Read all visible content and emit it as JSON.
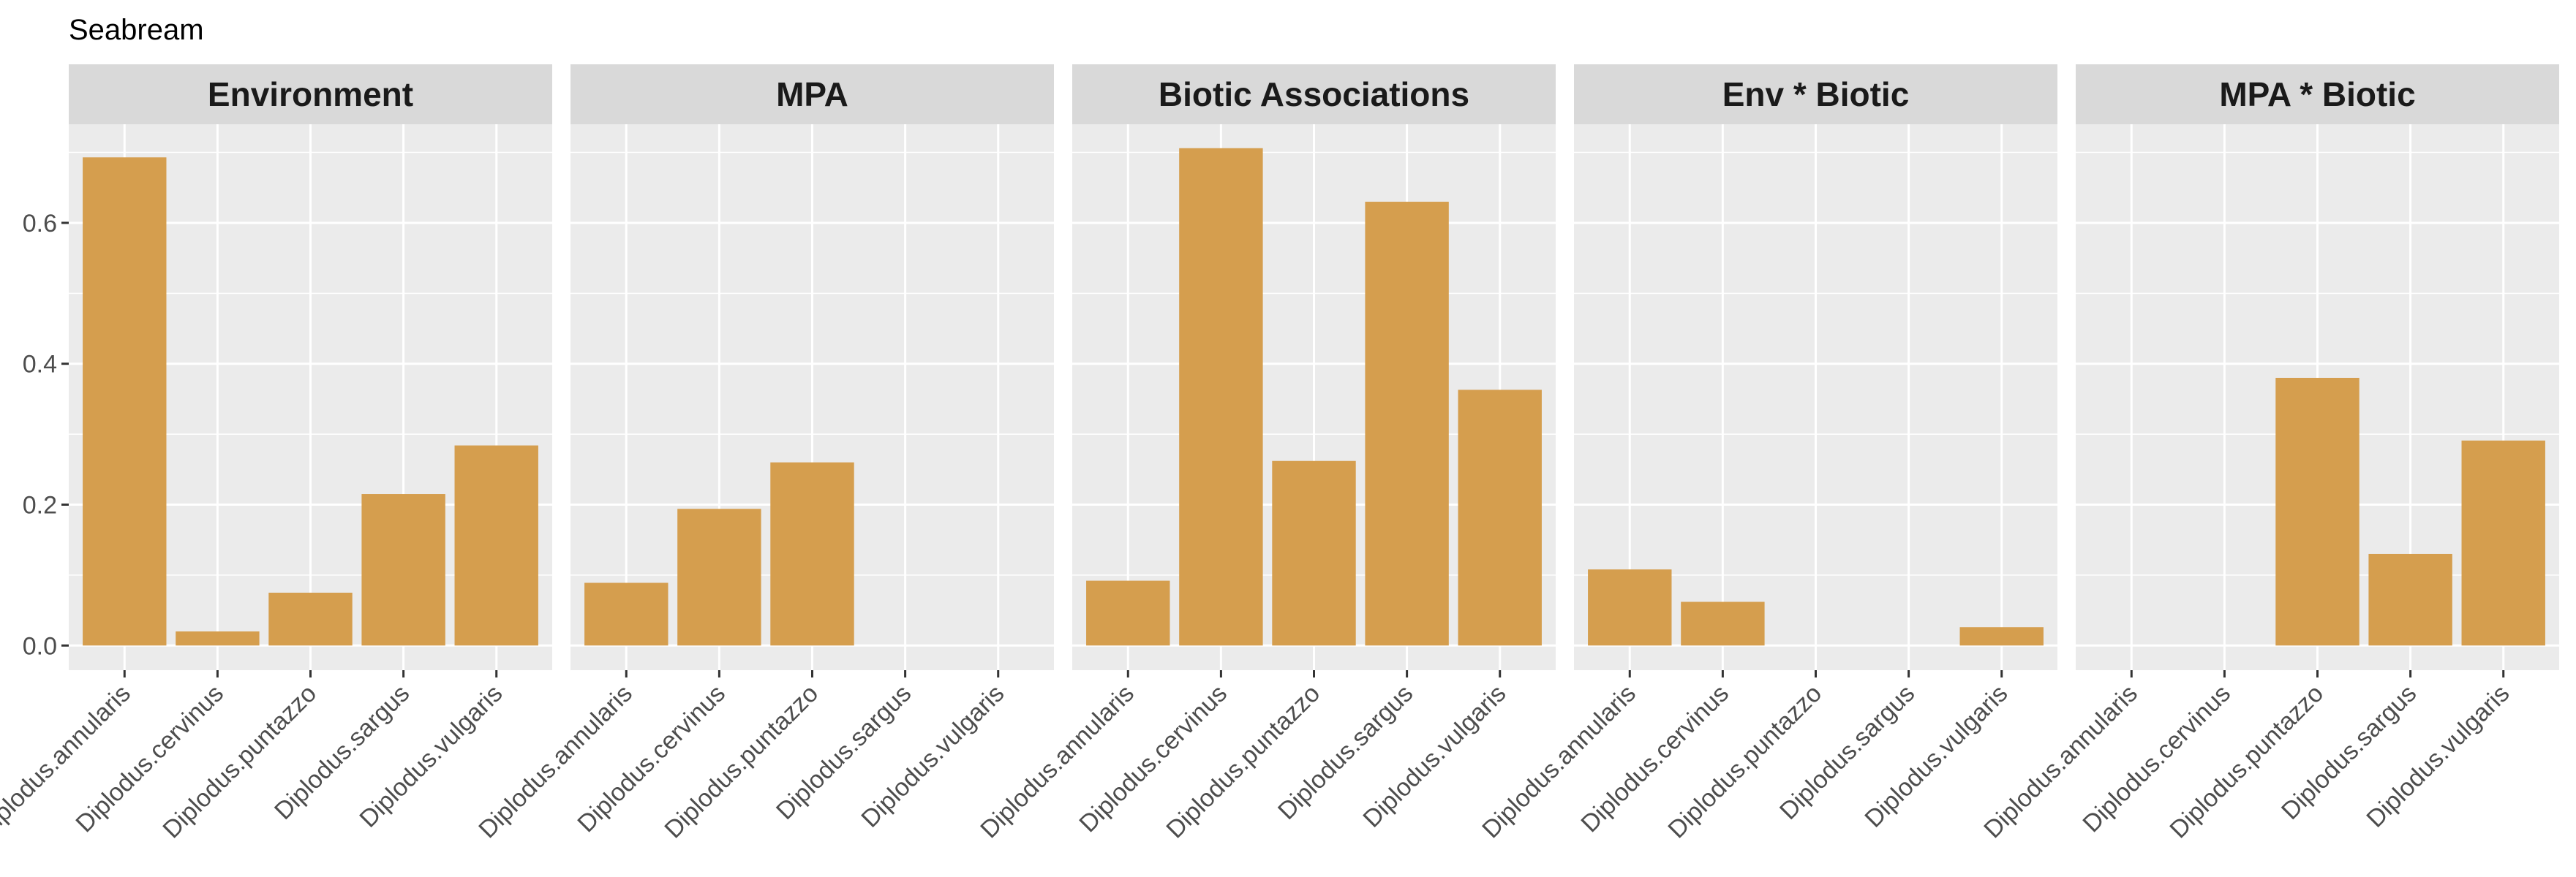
{
  "chart_data": {
    "type": "bar",
    "title": "Seabream",
    "xlabel": "",
    "ylabel": "",
    "ylim": [
      -0.035,
      0.74
    ],
    "yticks": [
      0.0,
      0.2,
      0.4,
      0.6
    ],
    "ytick_labels": [
      "0.0",
      "0.2",
      "0.4",
      "0.6"
    ],
    "grid": true,
    "bar_color": "#D59E4E",
    "panel_bg": "#EBEBEB",
    "strip_bg": "#D9D9D9",
    "grid_color": "#FFFFFF",
    "categories": [
      "Diplodus.annularis",
      "Diplodus.cervinus",
      "Diplodus.puntazzo",
      "Diplodus.sargus",
      "Diplodus.vulgaris"
    ],
    "facets": [
      {
        "name": "Environment",
        "values": [
          0.693,
          0.02,
          0.075,
          0.215,
          0.284
        ]
      },
      {
        "name": "MPA",
        "values": [
          0.089,
          0.194,
          0.26,
          0.0,
          0.0
        ]
      },
      {
        "name": "Biotic Associations",
        "values": [
          0.092,
          0.706,
          0.262,
          0.63,
          0.363
        ]
      },
      {
        "name": "Env * Biotic",
        "values": [
          0.108,
          0.062,
          0.0,
          0.0,
          0.026
        ]
      },
      {
        "name": "MPA * Biotic",
        "values": [
          0.0,
          0.0,
          0.38,
          0.13,
          0.291
        ]
      }
    ]
  }
}
